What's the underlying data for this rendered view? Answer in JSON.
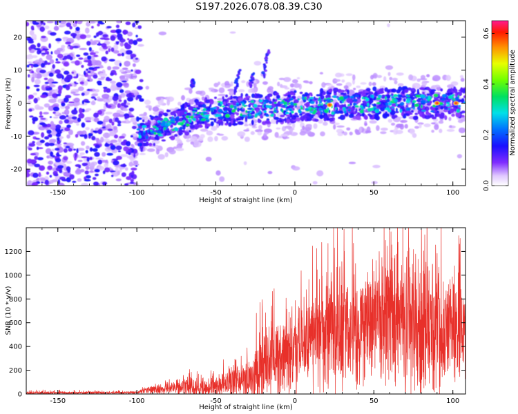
{
  "title": "S197.2026.078.08.39.C30",
  "colors": {
    "snr_line": "#e8302a",
    "axis": "#000000",
    "blob_low": "#6a1fd6",
    "blob_faint": "#c9b2f2"
  },
  "chart_data": [
    {
      "type": "heatmap",
      "name": "spectrogram",
      "xlabel": "Height of straight line (km)",
      "ylabel": "Frequency (Hz)",
      "xlim": [
        -170,
        108
      ],
      "ylim": [
        -25,
        25
      ],
      "xticks": [
        -150,
        -100,
        -50,
        0,
        50,
        100
      ],
      "yticks": [
        -20,
        -10,
        0,
        10,
        20
      ],
      "colorbar": {
        "label": "Normalized spectral amplitude",
        "range": [
          0.0,
          0.65
        ],
        "ticks": [
          "0.0",
          "0.2",
          "0.4",
          "0.6"
        ],
        "tick_values": [
          0.0,
          0.2,
          0.4,
          0.6
        ]
      },
      "features": {
        "noise_region_x": [
          -170,
          -100
        ],
        "signal_band_center_hz": [
          {
            "x": -95,
            "y": -9
          },
          {
            "x": -70,
            "y": -5
          },
          {
            "x": -50,
            "y": -2
          },
          {
            "x": -30,
            "y": -2
          },
          {
            "x": 0,
            "y": -1
          },
          {
            "x": 50,
            "y": 0
          },
          {
            "x": 105,
            "y": 0
          }
        ],
        "peak_amplitude_x_km": [
          22,
          90,
          102
        ]
      }
    },
    {
      "type": "line",
      "name": "snr",
      "xlabel": "Height of straight line (km)",
      "ylabel": "SNR (10 * v/v)",
      "xlim": [
        -170,
        108
      ],
      "ylim": [
        0,
        1400
      ],
      "xticks": [
        -150,
        -100,
        -50,
        0,
        50,
        100
      ],
      "yticks": [
        0,
        200,
        400,
        600,
        800,
        1000,
        1200
      ],
      "envelope": [
        {
          "x": -170,
          "mean": 10,
          "amp": 15
        },
        {
          "x": -100,
          "mean": 12,
          "amp": 12
        },
        {
          "x": -90,
          "mean": 40,
          "amp": 50
        },
        {
          "x": -70,
          "mean": 60,
          "amp": 90
        },
        {
          "x": -55,
          "mean": 55,
          "amp": 80
        },
        {
          "x": -50,
          "mean": 80,
          "amp": 120
        },
        {
          "x": -30,
          "mean": 130,
          "amp": 180
        },
        {
          "x": -22,
          "mean": 200,
          "amp": 350
        },
        {
          "x": -15,
          "mean": 280,
          "amp": 350
        },
        {
          "x": 0,
          "mean": 380,
          "amp": 450
        },
        {
          "x": 25,
          "mean": 520,
          "amp": 600
        },
        {
          "x": 50,
          "mean": 580,
          "amp": 650
        },
        {
          "x": 75,
          "mean": 600,
          "amp": 700
        },
        {
          "x": 100,
          "mean": 560,
          "amp": 620
        },
        {
          "x": 108,
          "mean": 520,
          "amp": 500
        }
      ],
      "notable_peaks": [
        {
          "x": -22,
          "y": 770
        },
        {
          "x": 25,
          "y": 1230
        },
        {
          "x": 72,
          "y": 1400
        }
      ]
    }
  ]
}
